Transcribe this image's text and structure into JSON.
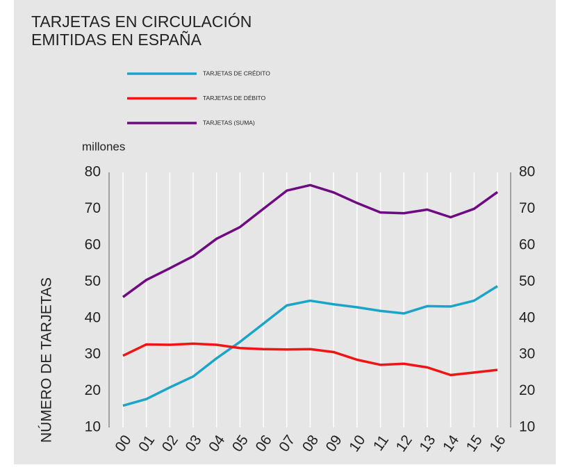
{
  "chart_data": {
    "type": "line",
    "title": [
      "TARJETAS EN CIRCULACIÓN",
      "EMITIDAS EN ESPAÑA"
    ],
    "unit_label": "millones",
    "y_label": "NÚMERO DE TARJETAS",
    "categories": [
      "00",
      "01",
      "02",
      "03",
      "04",
      "05",
      "06",
      "07",
      "08",
      "09",
      "10",
      "11",
      "12",
      "13",
      "14",
      "15",
      "16"
    ],
    "series": [
      {
        "name": "TARJETAS DE CRÉDITO",
        "color": "#1aa5c8",
        "values": [
          16,
          17.8,
          21,
          24,
          29,
          33.5,
          38.5,
          43.5,
          44.8,
          43.8,
          43,
          42,
          41.3,
          43.3,
          43.2,
          44.8,
          48.8
        ]
      },
      {
        "name": "TARJETAS DE DÉBITO",
        "color": "#f01414",
        "values": [
          29.7,
          32.8,
          32.7,
          33,
          32.7,
          31.8,
          31.5,
          31.4,
          31.5,
          30.7,
          28.6,
          27.2,
          27.5,
          26.5,
          24.4,
          25.1,
          25.8
        ]
      },
      {
        "name": "TARJETAS (SUMA)",
        "color": "#6e0a82",
        "values": [
          45.8,
          50.5,
          53.7,
          57,
          61.8,
          65,
          70,
          75,
          76.5,
          74.5,
          71.6,
          69,
          68.8,
          69.8,
          67.7,
          70,
          74.6
        ]
      }
    ],
    "ylim": [
      10,
      80
    ],
    "yticks": [
      10,
      20,
      30,
      40,
      50,
      60,
      70,
      80
    ],
    "y2lim": [
      10,
      80
    ],
    "y2ticks": [
      10,
      20,
      30,
      40,
      50,
      60,
      70,
      80
    ],
    "grid": true
  }
}
